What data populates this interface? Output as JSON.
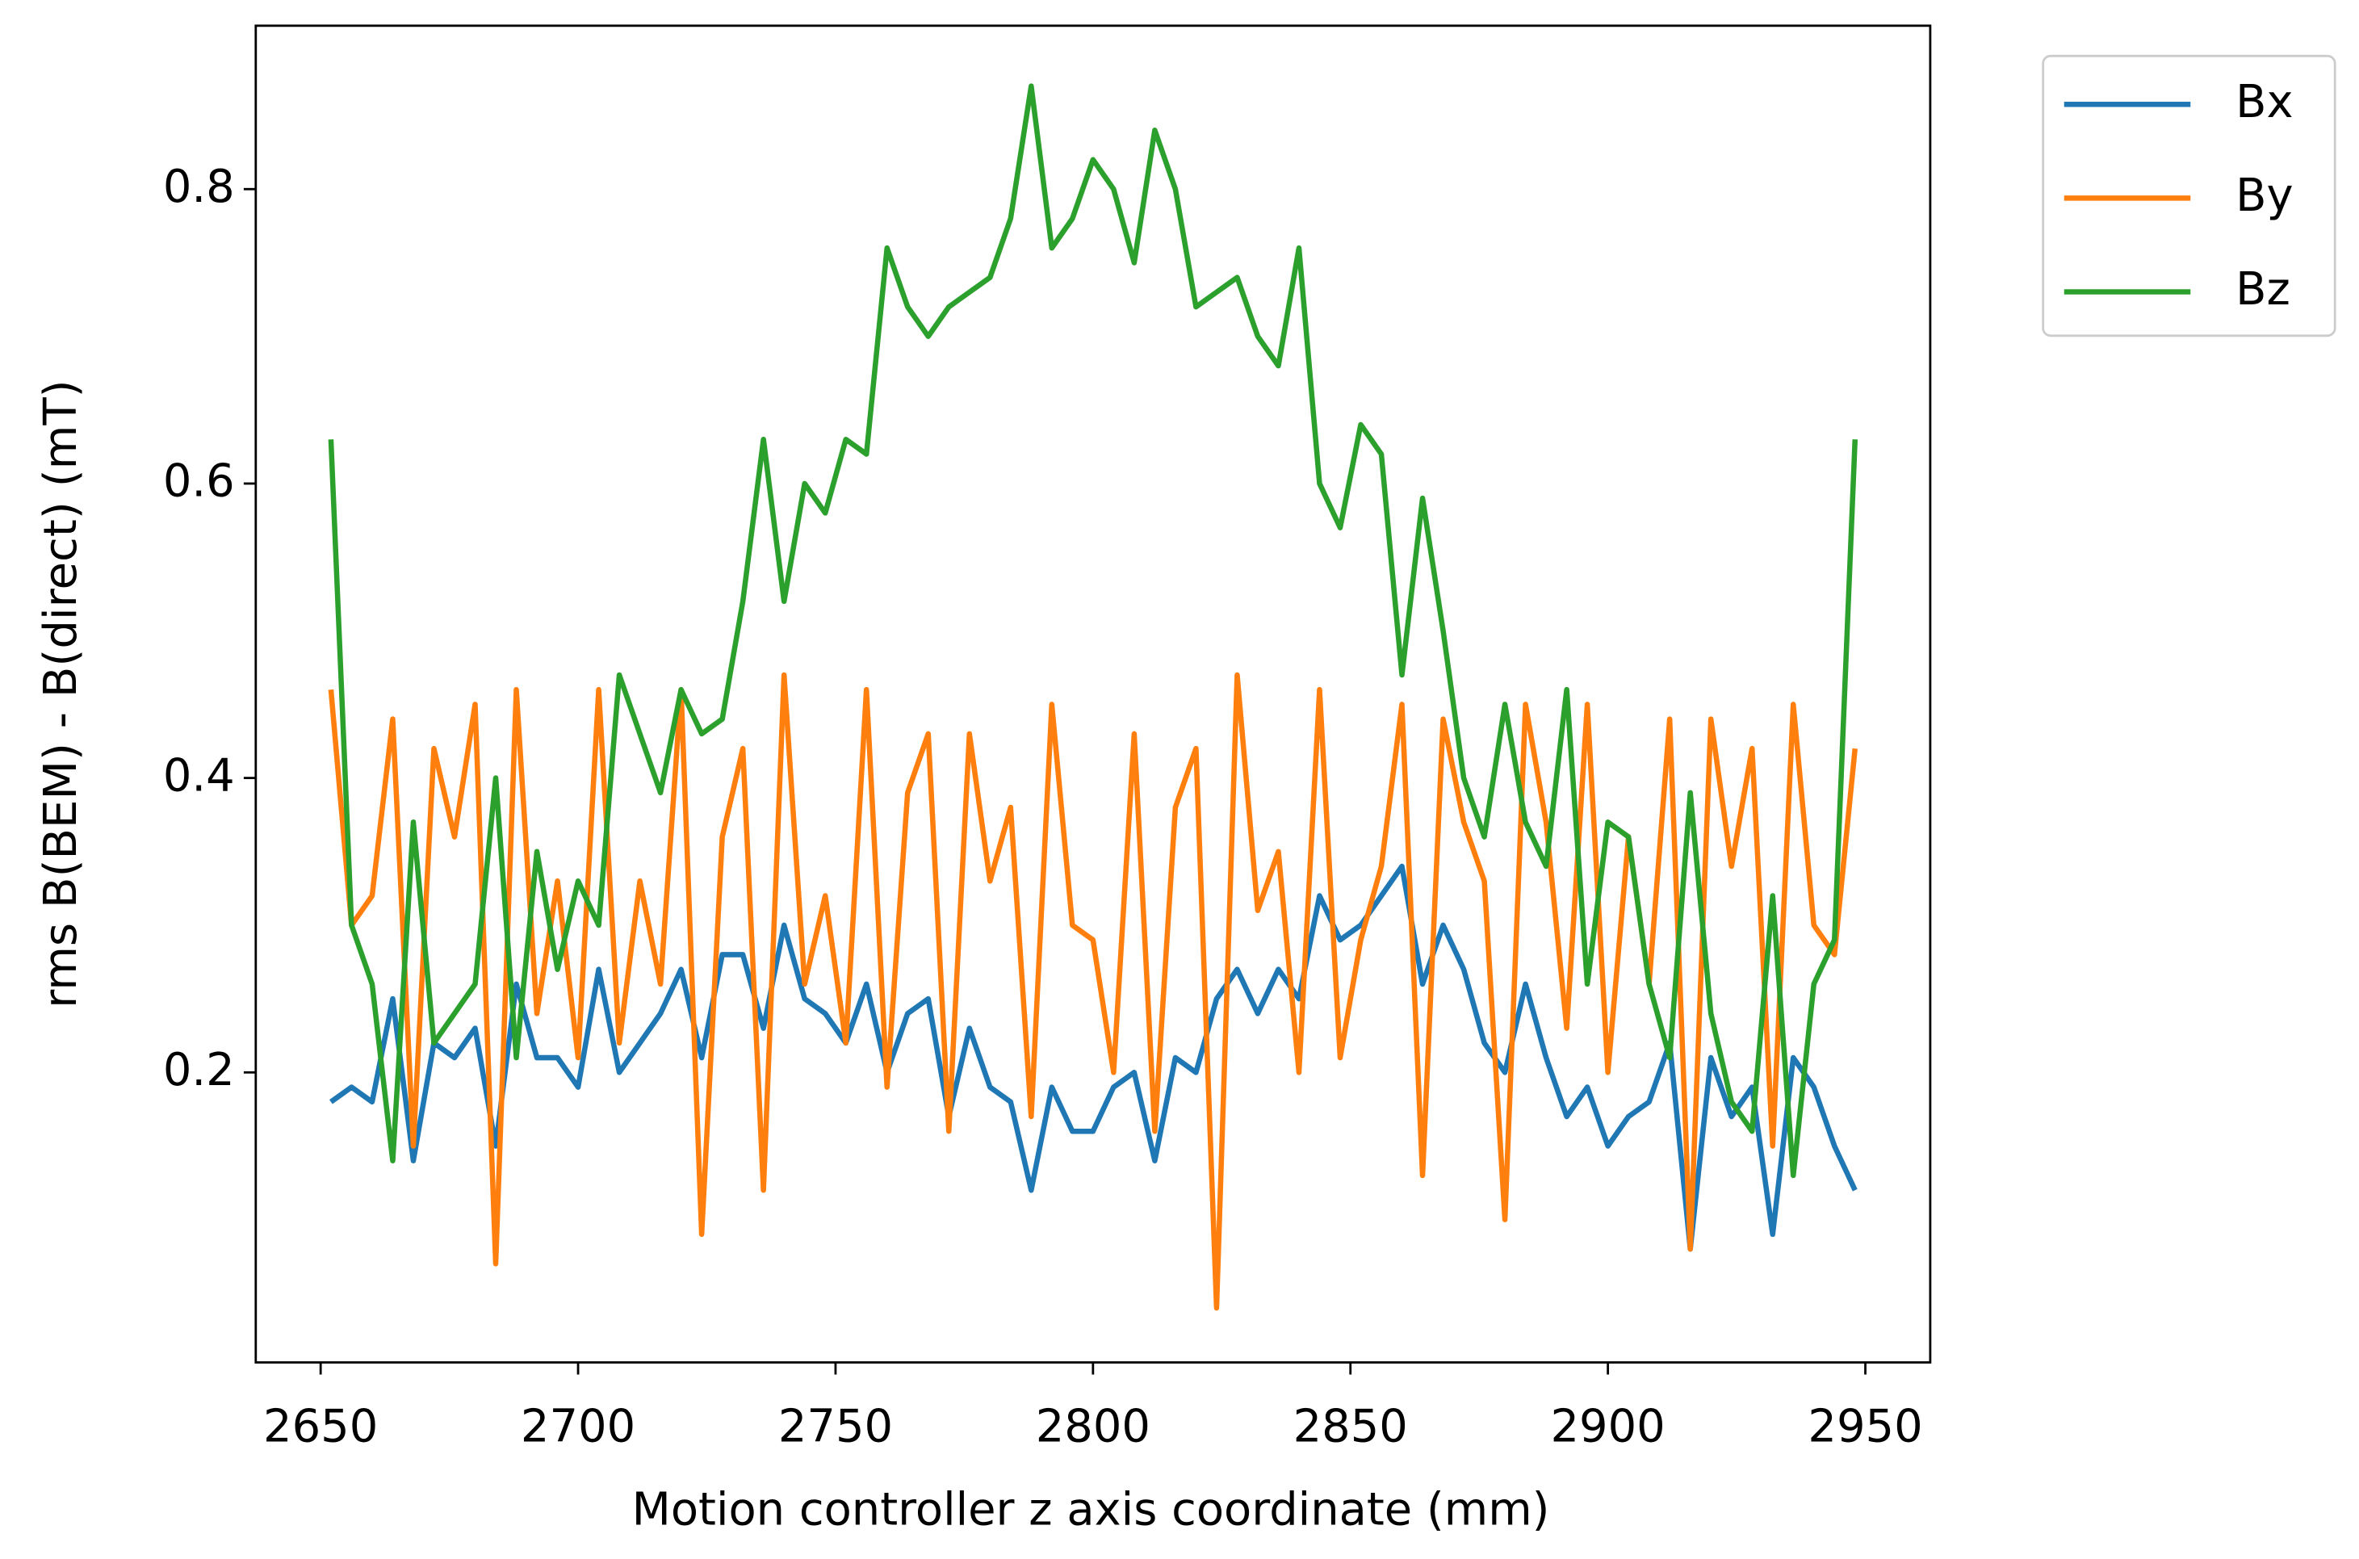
{
  "chart_data": {
    "type": "line",
    "xlabel": "Motion controller z axis coordinate (mm)",
    "ylabel": "rms B(BEM) - B(direct) (mT)",
    "x": [
      2652,
      2656,
      2660,
      2664,
      2668,
      2672,
      2676,
      2680,
      2684,
      2688,
      2692,
      2696,
      2700,
      2704,
      2708,
      2712,
      2716,
      2720,
      2724,
      2728,
      2732,
      2736,
      2740,
      2744,
      2748,
      2752,
      2756,
      2760,
      2764,
      2768,
      2772,
      2776,
      2780,
      2784,
      2788,
      2792,
      2796,
      2800,
      2804,
      2808,
      2812,
      2816,
      2820,
      2824,
      2828,
      2832,
      2836,
      2840,
      2844,
      2848,
      2852,
      2856,
      2860,
      2864,
      2868,
      2872,
      2876,
      2880,
      2884,
      2888,
      2892,
      2896,
      2900,
      2904,
      2908,
      2912,
      2916,
      2920,
      2924,
      2928,
      2932,
      2936,
      2940,
      2944,
      2948
    ],
    "series": [
      {
        "name": "Bx",
        "color": "#1f77b4",
        "values": [
          0.18,
          0.19,
          0.18,
          0.25,
          0.14,
          0.22,
          0.21,
          0.23,
          0.15,
          0.26,
          0.21,
          0.21,
          0.19,
          0.27,
          0.2,
          0.22,
          0.24,
          0.27,
          0.21,
          0.28,
          0.28,
          0.23,
          0.3,
          0.25,
          0.24,
          0.22,
          0.26,
          0.2,
          0.24,
          0.25,
          0.17,
          0.23,
          0.19,
          0.18,
          0.12,
          0.19,
          0.16,
          0.16,
          0.19,
          0.2,
          0.14,
          0.21,
          0.2,
          0.25,
          0.27,
          0.24,
          0.27,
          0.25,
          0.32,
          0.29,
          0.3,
          0.32,
          0.34,
          0.26,
          0.3,
          0.27,
          0.22,
          0.2,
          0.26,
          0.21,
          0.17,
          0.19,
          0.15,
          0.17,
          0.18,
          0.22,
          0.08,
          0.21,
          0.17,
          0.19,
          0.09,
          0.21,
          0.19,
          0.15,
          0.12
        ]
      },
      {
        "name": "By",
        "color": "#ff7f0e",
        "values": [
          0.46,
          0.3,
          0.32,
          0.44,
          0.15,
          0.42,
          0.36,
          0.45,
          0.07,
          0.46,
          0.24,
          0.33,
          0.21,
          0.46,
          0.22,
          0.33,
          0.26,
          0.46,
          0.09,
          0.36,
          0.42,
          0.12,
          0.47,
          0.26,
          0.32,
          0.22,
          0.46,
          0.19,
          0.39,
          0.43,
          0.16,
          0.43,
          0.33,
          0.38,
          0.17,
          0.45,
          0.3,
          0.29,
          0.2,
          0.43,
          0.16,
          0.38,
          0.42,
          0.04,
          0.47,
          0.31,
          0.35,
          0.2,
          0.46,
          0.21,
          0.29,
          0.34,
          0.45,
          0.13,
          0.44,
          0.37,
          0.33,
          0.1,
          0.45,
          0.37,
          0.23,
          0.45,
          0.2,
          0.36,
          0.26,
          0.44,
          0.08,
          0.44,
          0.34,
          0.42,
          0.15,
          0.45,
          0.3,
          0.28,
          0.42
        ]
      },
      {
        "name": "Bz",
        "color": "#2ca02c",
        "values": [
          0.63,
          0.3,
          0.26,
          0.14,
          0.37,
          0.22,
          0.24,
          0.26,
          0.4,
          0.21,
          0.35,
          0.27,
          0.33,
          0.3,
          0.47,
          0.43,
          0.39,
          0.46,
          0.43,
          0.44,
          0.52,
          0.63,
          0.52,
          0.6,
          0.58,
          0.63,
          0.62,
          0.76,
          0.72,
          0.7,
          0.72,
          0.73,
          0.74,
          0.78,
          0.87,
          0.76,
          0.78,
          0.82,
          0.8,
          0.75,
          0.84,
          0.8,
          0.72,
          0.73,
          0.74,
          0.7,
          0.68,
          0.76,
          0.6,
          0.57,
          0.64,
          0.62,
          0.47,
          0.59,
          0.5,
          0.4,
          0.36,
          0.45,
          0.37,
          0.34,
          0.46,
          0.26,
          0.37,
          0.36,
          0.26,
          0.21,
          0.39,
          0.24,
          0.18,
          0.16,
          0.32,
          0.13,
          0.26,
          0.29,
          0.63
        ]
      }
    ],
    "xlim": [
      2637.4,
      2962.6
    ],
    "xticks": [
      2650,
      2700,
      2750,
      2800,
      2850,
      2900,
      2950
    ],
    "ylim": [
      0.003,
      0.911
    ],
    "yticks": [
      0.2,
      0.4,
      0.6,
      0.8
    ],
    "grid": false,
    "legend": "outside upper right"
  }
}
